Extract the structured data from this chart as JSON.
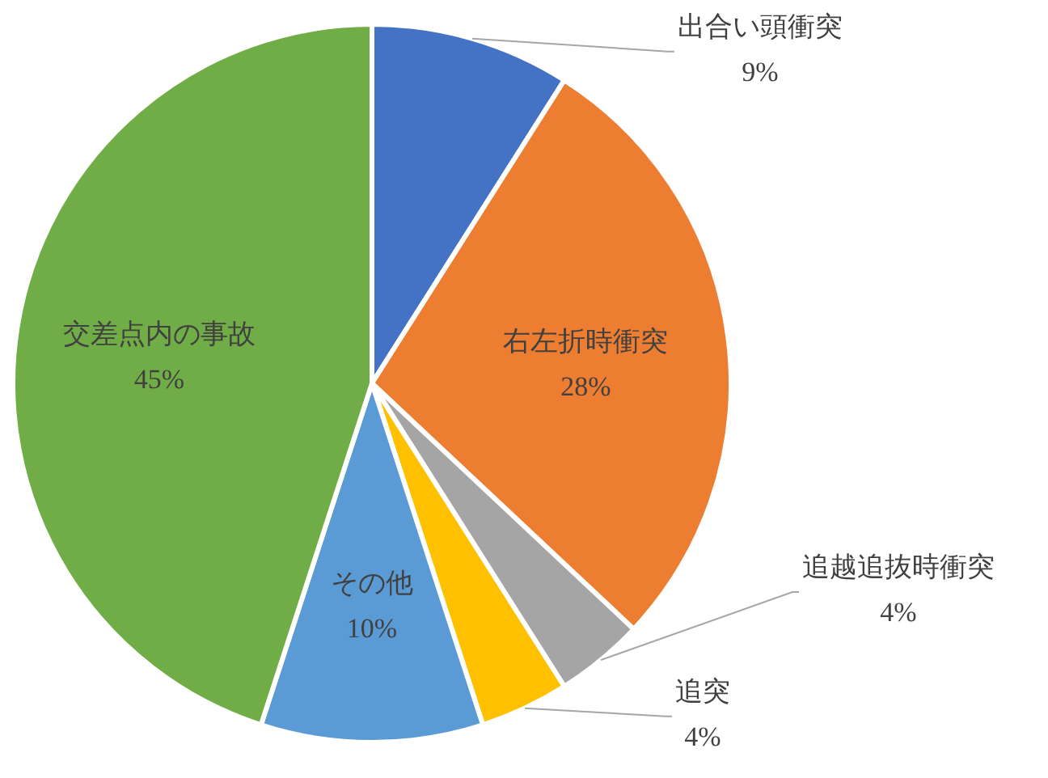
{
  "chart_data": {
    "type": "pie",
    "categories": [
      "出合い頭衝突",
      "右左折時衝突",
      "追越追抜時衝突",
      "追突",
      "その他",
      "交差点内の事故"
    ],
    "values": [
      9,
      28,
      4,
      4,
      10,
      45
    ],
    "colors": [
      "#4472c4",
      "#ed7d31",
      "#a5a5a5",
      "#ffc000",
      "#5b9bd5",
      "#70ad47"
    ],
    "value_labels": [
      "9%",
      "28%",
      "4%",
      "4%",
      "10%",
      "45%"
    ]
  }
}
